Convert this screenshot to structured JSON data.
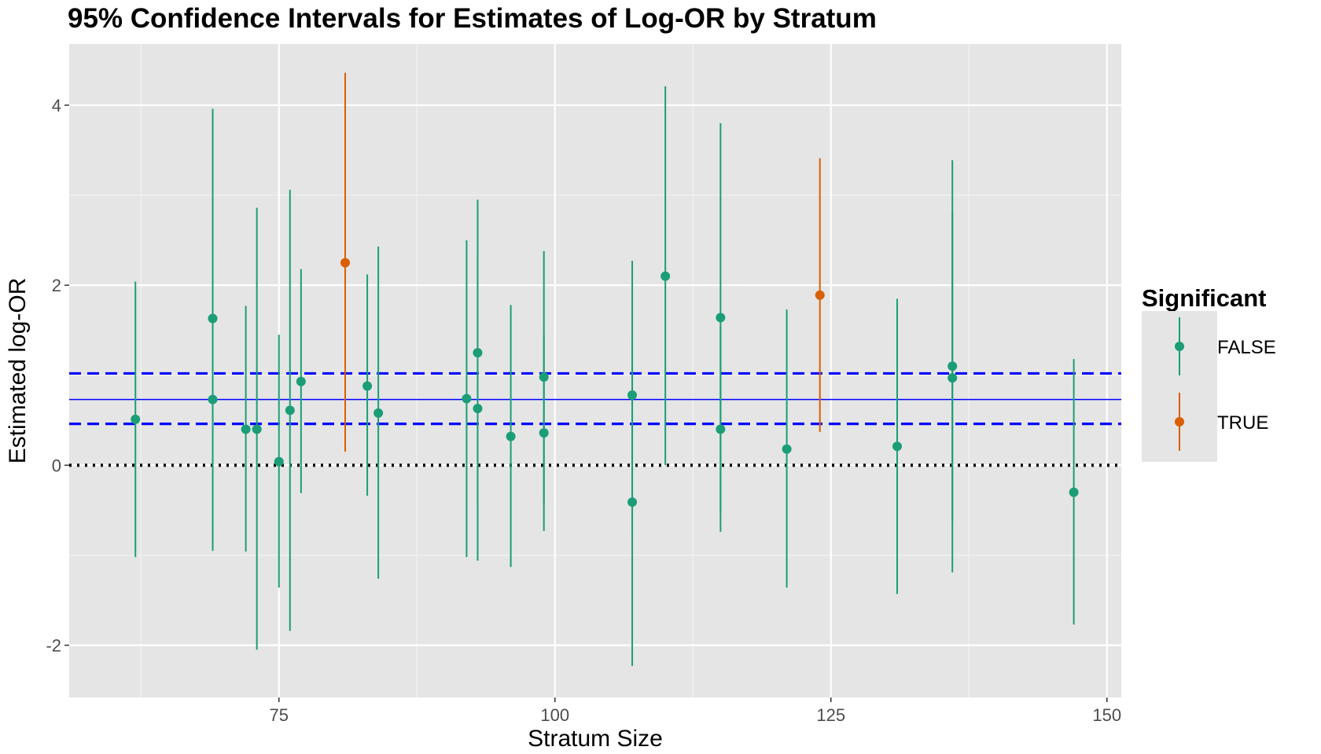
{
  "chart_data": {
    "type": "scatter",
    "title": "95% Confidence Intervals for Estimates of Log-OR by Stratum",
    "xlabel": "Stratum Size",
    "ylabel": "Estimated log-OR",
    "xlim": [
      56,
      151.3
    ],
    "ylim": [
      -2.58,
      4.68
    ],
    "x_ticks": [
      75,
      100,
      125,
      150
    ],
    "y_ticks": [
      -2,
      0,
      2,
      4
    ],
    "x_tick_labels": [
      "75",
      "100",
      "125",
      "150"
    ],
    "y_tick_labels": [
      "-2",
      "0",
      "2",
      "4"
    ],
    "grid": true,
    "legend": {
      "title": "Significant",
      "position": "right",
      "entries": [
        {
          "label": "FALSE",
          "color": "#1b9e77"
        },
        {
          "label": "TRUE",
          "color": "#d95f02"
        }
      ]
    },
    "reference_lines": {
      "pooled_estimate": 0.73,
      "pooled_ci": [
        0.46,
        1.02
      ],
      "null_value": 0,
      "colors": {
        "pooled": "#0000ff",
        "null": "#000000"
      }
    },
    "series": [
      {
        "name": "FALSE",
        "color": "#1b9e77",
        "points": [
          {
            "x": 62,
            "y": 0.51,
            "lower": -1.02,
            "upper": 2.04
          },
          {
            "x": 69,
            "y": 1.63,
            "lower": -0.7,
            "upper": 3.96
          },
          {
            "x": 69,
            "y": 0.73,
            "lower": -0.95,
            "upper": 2.42
          },
          {
            "x": 72,
            "y": 0.4,
            "lower": -0.96,
            "upper": 1.77
          },
          {
            "x": 73,
            "y": 0.4,
            "lower": -2.05,
            "upper": 2.86
          },
          {
            "x": 75,
            "y": 0.04,
            "lower": -1.36,
            "upper": 1.45
          },
          {
            "x": 76,
            "y": 0.61,
            "lower": -1.84,
            "upper": 3.06
          },
          {
            "x": 77,
            "y": 0.93,
            "lower": -0.31,
            "upper": 2.18
          },
          {
            "x": 83,
            "y": 0.88,
            "lower": -0.34,
            "upper": 2.12
          },
          {
            "x": 84,
            "y": 0.58,
            "lower": -1.26,
            "upper": 2.43
          },
          {
            "x": 92,
            "y": 0.74,
            "lower": -1.02,
            "upper": 2.5
          },
          {
            "x": 93,
            "y": 1.25,
            "lower": -0.45,
            "upper": 2.95
          },
          {
            "x": 93,
            "y": 0.63,
            "lower": -1.06,
            "upper": 2.33
          },
          {
            "x": 96,
            "y": 0.32,
            "lower": -1.13,
            "upper": 1.78
          },
          {
            "x": 99,
            "y": 0.98,
            "lower": -0.42,
            "upper": 2.38
          },
          {
            "x": 99,
            "y": 0.36,
            "lower": -0.73,
            "upper": 1.45
          },
          {
            "x": 107,
            "y": 0.78,
            "lower": -0.73,
            "upper": 2.27
          },
          {
            "x": 107,
            "y": -0.41,
            "lower": -2.23,
            "upper": 1.42
          },
          {
            "x": 110,
            "y": 2.1,
            "lower": 0.0,
            "upper": 4.21
          },
          {
            "x": 115,
            "y": 1.64,
            "lower": -0.52,
            "upper": 3.8
          },
          {
            "x": 115,
            "y": 0.4,
            "lower": -0.74,
            "upper": 1.54
          },
          {
            "x": 121,
            "y": 0.18,
            "lower": -1.36,
            "upper": 1.73
          },
          {
            "x": 131,
            "y": 0.21,
            "lower": -1.43,
            "upper": 1.85
          },
          {
            "x": 136,
            "y": 1.1,
            "lower": -0.62,
            "upper": 2.82
          },
          {
            "x": 136,
            "y": 0.97,
            "lower": -1.19,
            "upper": 3.39
          },
          {
            "x": 147,
            "y": -0.3,
            "lower": -1.77,
            "upper": 1.18
          }
        ]
      },
      {
        "name": "TRUE",
        "color": "#d95f02",
        "points": [
          {
            "x": 81,
            "y": 2.25,
            "lower": 0.15,
            "upper": 4.36
          },
          {
            "x": 124,
            "y": 1.89,
            "lower": 0.37,
            "upper": 3.41
          }
        ]
      }
    ]
  }
}
